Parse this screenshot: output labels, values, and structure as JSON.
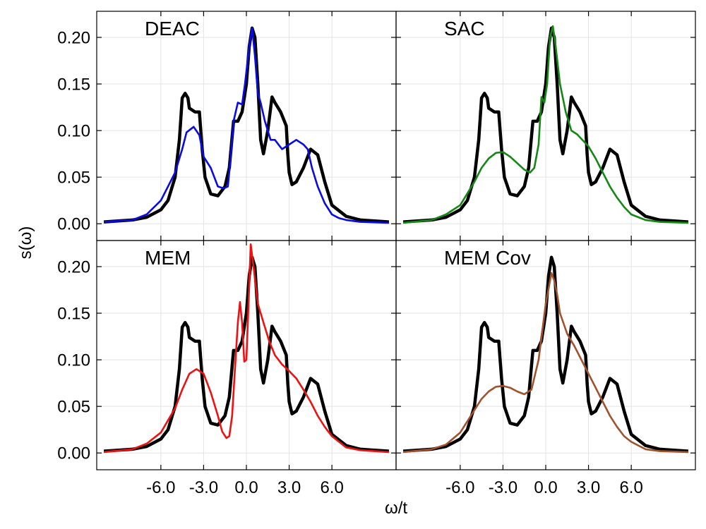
{
  "chart_data": {
    "type": "line",
    "layout": "2x2 grid of line plots with shared axes",
    "xlabel": "ω/t",
    "ylabel": "s(ω)",
    "xticks": [
      "-6.0",
      "-3.0",
      "0.0",
      "3.0",
      "6.0"
    ],
    "yticks": [
      "0.00",
      "0.05",
      "0.10",
      "0.15",
      "0.20"
    ],
    "xlim": [
      -10.5,
      10.5
    ],
    "ylim": [
      -0.018,
      0.228
    ],
    "grid": true,
    "reference_color": "#000000",
    "reference": {
      "x": [
        -10,
        -8,
        -7,
        -6,
        -5.5,
        -5,
        -4.7,
        -4.5,
        -4.3,
        -4.1,
        -4.0,
        -3.6,
        -3.3,
        -3.1,
        -2.9,
        -2.5,
        -2.0,
        -1.5,
        -1.2,
        -0.9,
        -0.6,
        -0.3,
        0.0,
        0.2,
        0.4,
        0.6,
        0.8,
        1.0,
        1.2,
        1.5,
        1.8,
        2.0,
        2.4,
        2.8,
        2.9,
        3.0,
        3.2,
        3.5,
        4.0,
        4.5,
        5.0,
        5.5,
        6.0,
        7.0,
        8.0,
        10.0
      ],
      "y": [
        0.002,
        0.004,
        0.007,
        0.015,
        0.025,
        0.05,
        0.09,
        0.135,
        0.14,
        0.135,
        0.124,
        0.12,
        0.12,
        0.08,
        0.05,
        0.032,
        0.03,
        0.04,
        0.06,
        0.11,
        0.11,
        0.12,
        0.15,
        0.19,
        0.21,
        0.2,
        0.15,
        0.09,
        0.075,
        0.1,
        0.136,
        0.13,
        0.12,
        0.105,
        0.075,
        0.055,
        0.042,
        0.045,
        0.06,
        0.08,
        0.074,
        0.045,
        0.02,
        0.008,
        0.004,
        0.002
      ]
    },
    "panels": [
      {
        "title": "DEAC",
        "color": "#0a0ae6",
        "x": [
          -10,
          -8,
          -7,
          -6,
          -5.5,
          -5,
          -4.5,
          -4.2,
          -3.7,
          -3.3,
          -3.0,
          -2.5,
          -2.0,
          -1.6,
          -1.3,
          -1.1,
          -0.9,
          -0.6,
          -0.3,
          -0.1,
          0.2,
          0.4,
          0.6,
          0.8,
          1.0,
          1.3,
          1.7,
          2.0,
          2.5,
          3.0,
          3.5,
          4.0,
          4.3,
          4.6,
          5.0,
          5.5,
          6.0,
          6.5,
          7.0,
          8.0,
          10.0
        ],
        "y": [
          0.002,
          0.004,
          0.01,
          0.025,
          0.04,
          0.055,
          0.08,
          0.098,
          0.104,
          0.095,
          0.072,
          0.06,
          0.04,
          0.038,
          0.04,
          0.072,
          0.11,
          0.13,
          0.128,
          0.15,
          0.19,
          0.21,
          0.18,
          0.14,
          0.13,
          0.11,
          0.09,
          0.09,
          0.08,
          0.085,
          0.09,
          0.085,
          0.08,
          0.06,
          0.04,
          0.022,
          0.01,
          0.006,
          0.004,
          0.002,
          0.001
        ]
      },
      {
        "title": "SAC",
        "color": "#158715",
        "x": [
          -10,
          -8,
          -7,
          -6,
          -5,
          -4.5,
          -4.0,
          -3.5,
          -3.0,
          -2.5,
          -2.0,
          -1.5,
          -1.1,
          -0.8,
          -0.5,
          -0.3,
          -0.1,
          0.1,
          0.3,
          0.5,
          0.7,
          1.0,
          1.4,
          1.8,
          2.2,
          3.0,
          3.5,
          4.0,
          4.5,
          5.0,
          5.5,
          6.0,
          7.0,
          8.0,
          10.0
        ],
        "y": [
          0.001,
          0.004,
          0.01,
          0.02,
          0.045,
          0.06,
          0.07,
          0.076,
          0.077,
          0.072,
          0.065,
          0.058,
          0.055,
          0.06,
          0.085,
          0.136,
          0.13,
          0.15,
          0.2,
          0.212,
          0.19,
          0.15,
          0.12,
          0.1,
          0.096,
          0.083,
          0.07,
          0.055,
          0.04,
          0.028,
          0.018,
          0.01,
          0.004,
          0.002,
          0.001
        ]
      },
      {
        "title": "MEM",
        "color": "#ee1111",
        "x": [
          -10,
          -8,
          -7,
          -6,
          -5,
          -4.5,
          -4.0,
          -3.5,
          -3.0,
          -2.5,
          -2.0,
          -1.7,
          -1.4,
          -1.2,
          -1.0,
          -0.8,
          -0.6,
          -0.45,
          -0.3,
          -0.15,
          0.0,
          0.15,
          0.3,
          0.5,
          0.8,
          1.2,
          1.6,
          2.0,
          2.5,
          3.0,
          3.5,
          4.0,
          4.5,
          5.0,
          5.5,
          6.0,
          7.0,
          8.0,
          10.0
        ],
        "y": [
          0.001,
          0.004,
          0.01,
          0.022,
          0.048,
          0.068,
          0.085,
          0.09,
          0.085,
          0.065,
          0.04,
          0.023,
          0.016,
          0.018,
          0.04,
          0.09,
          0.14,
          0.162,
          0.14,
          0.098,
          0.1,
          0.16,
          0.224,
          0.2,
          0.16,
          0.14,
          0.12,
          0.105,
          0.095,
          0.088,
          0.08,
          0.068,
          0.055,
          0.04,
          0.028,
          0.018,
          0.006,
          0.003,
          0.001
        ]
      },
      {
        "title": "MEM Cov",
        "color": "#a0522d",
        "x": [
          -10,
          -8,
          -7,
          -6,
          -5,
          -4.5,
          -4.0,
          -3.5,
          -3.0,
          -2.5,
          -2.0,
          -1.5,
          -1.0,
          -0.5,
          0.0,
          0.4,
          0.6,
          0.8,
          1.0,
          1.5,
          2.0,
          2.5,
          3.0,
          3.5,
          4.0,
          4.5,
          5.0,
          5.5,
          6.0,
          7.0,
          8.0,
          10.0
        ],
        "y": [
          0.001,
          0.004,
          0.009,
          0.022,
          0.046,
          0.058,
          0.066,
          0.071,
          0.072,
          0.07,
          0.066,
          0.063,
          0.068,
          0.1,
          0.16,
          0.193,
          0.185,
          0.17,
          0.15,
          0.128,
          0.115,
          0.1,
          0.085,
          0.07,
          0.055,
          0.04,
          0.028,
          0.018,
          0.012,
          0.004,
          0.002,
          0.001
        ]
      }
    ]
  }
}
